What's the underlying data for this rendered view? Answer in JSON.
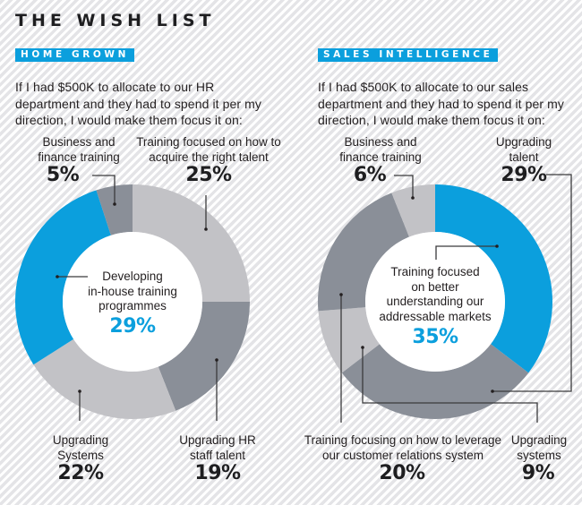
{
  "title": "THE WISH LIST",
  "colors": {
    "accent": "#0b9fdd",
    "dark_grey": "#8a8f98",
    "light_grey": "#c2c2c6",
    "text": "#231f20",
    "leader": "#3a3a3c"
  },
  "chart_data": [
    {
      "type": "pie",
      "variant": "donut",
      "tag": "HOME GROWN",
      "intro": [
        "If I had $500K to allocate to our HR",
        "department and they had to spend it per my",
        "direction, I would make them focus it on:"
      ],
      "slices": [
        {
          "label": "Training focused on how to acquire the right talent",
          "label_lines": [
            "Training focused on how to",
            "acquire the right talent"
          ],
          "value": 25,
          "display": "25%",
          "color": "light_grey"
        },
        {
          "label": "Upgrading HR staff talent",
          "label_lines": [
            "Upgrading HR",
            "staff talent"
          ],
          "value": 19,
          "display": "19%",
          "color": "dark_grey"
        },
        {
          "label": "Upgrading Systems",
          "label_lines": [
            "Upgrading",
            "Systems"
          ],
          "value": 22,
          "display": "22%",
          "color": "light_grey"
        },
        {
          "label": "Developing in-house training programmes",
          "label_lines": [
            "Developing",
            "in-house training",
            "programmes"
          ],
          "value": 29,
          "display": "29%",
          "color": "accent",
          "highlight": true
        },
        {
          "label": "Business and finance training",
          "label_lines": [
            "Business and",
            "finance training"
          ],
          "value": 5,
          "display": "5%",
          "color": "dark_grey"
        }
      ]
    },
    {
      "type": "pie",
      "variant": "donut",
      "tag": "SALES INTELLIGENCE",
      "intro": [
        "If I had $500K to allocate to our sales",
        "department and they had to spend it per my",
        "direction, I would make them focus it on:"
      ],
      "slices": [
        {
          "label": "Training focused on better understanding our addressable markets",
          "label_lines": [
            "Training focused",
            "on better",
            "understanding our",
            "addressable markets"
          ],
          "value": 35,
          "display": "35%",
          "color": "accent",
          "highlight": true
        },
        {
          "label": "Upgrading talent",
          "label_lines": [
            "Upgrading",
            "talent"
          ],
          "value": 29,
          "display": "29%",
          "color": "dark_grey"
        },
        {
          "label": "Upgrading systems",
          "label_lines": [
            "Upgrading",
            "systems"
          ],
          "value": 9,
          "display": "9%",
          "color": "light_grey"
        },
        {
          "label": "Training focusing on how to leverage our customer relations system",
          "label_lines": [
            "Training focusing on how to leverage",
            "our customer relations system"
          ],
          "value": 20,
          "display": "20%",
          "color": "dark_grey"
        },
        {
          "label": "Business and finance training",
          "label_lines": [
            "Business and",
            "finance training"
          ],
          "value": 6,
          "display": "6%",
          "color": "light_grey"
        }
      ]
    }
  ]
}
